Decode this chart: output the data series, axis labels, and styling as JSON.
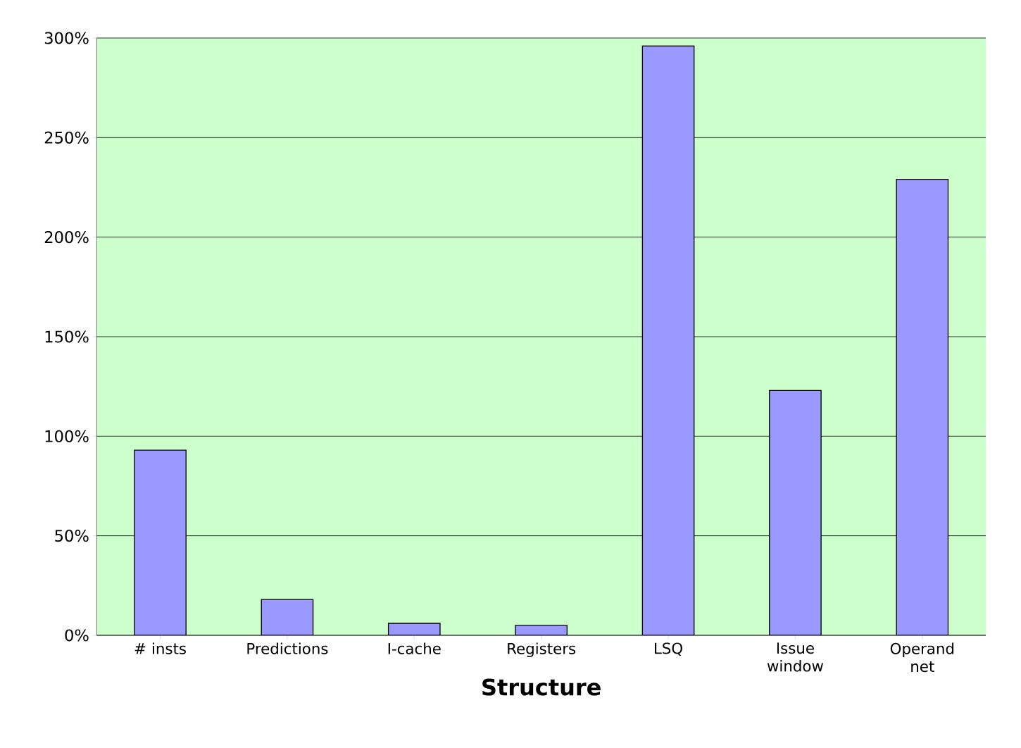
{
  "chart_data": {
    "type": "bar",
    "xlabel": "Structure",
    "categories": [
      "# insts",
      "Predictions",
      "I-cache",
      "Registers",
      "LSQ",
      "Issue window",
      "Operand net"
    ],
    "values": [
      93,
      18,
      6,
      5,
      296,
      123,
      229
    ],
    "color": "#9999ff",
    "ylim": [
      0,
      300
    ],
    "yticks": [
      {
        "value": 0,
        "label": "0%"
      },
      {
        "value": 50,
        "label": "50%"
      },
      {
        "value": 100,
        "label": "100%"
      },
      {
        "value": 150,
        "label": "150%"
      },
      {
        "value": 200,
        "label": "200%"
      },
      {
        "value": 250,
        "label": "250%"
      },
      {
        "value": 300,
        "label": "300%"
      }
    ],
    "grid": "y"
  }
}
